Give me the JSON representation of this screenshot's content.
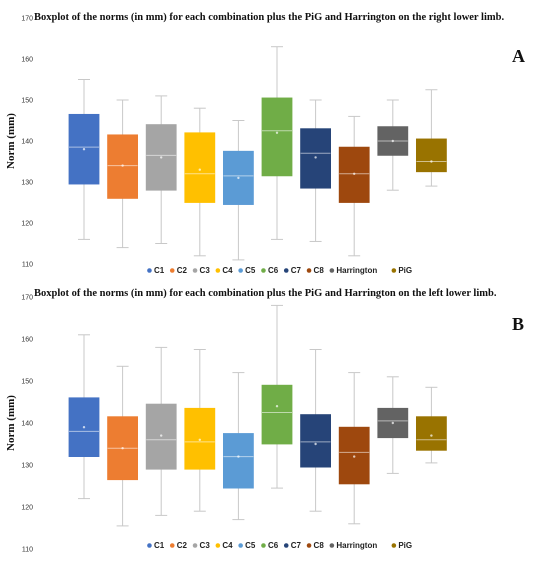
{
  "chart_data": [
    {
      "type": "boxplot",
      "panel": "A",
      "title": "Boxplot  of the norms (in mm)  for each combination  plus the PiG and Harrington  on the right lower limb.",
      "ylabel": "Norm (mm)",
      "ylim": [
        110,
        170
      ],
      "yticks": [
        110,
        120,
        130,
        140,
        150,
        160,
        170
      ],
      "grid": false,
      "legend_position": "bottom",
      "series": [
        {
          "name": "C1",
          "color": "#4472C4",
          "min": 116,
          "q1": 129.5,
          "median": 138.5,
          "q3": 146.5,
          "max": 155,
          "mean": 138
        },
        {
          "name": "C2",
          "color": "#ED7D31",
          "min": 114,
          "q1": 126,
          "median": 134,
          "q3": 141.5,
          "max": 150,
          "mean": 134
        },
        {
          "name": "C3",
          "color": "#A5A5A5",
          "min": 115,
          "q1": 128,
          "median": 136.5,
          "q3": 144,
          "max": 151,
          "mean": 136
        },
        {
          "name": "C4",
          "color": "#FFC000",
          "min": 112,
          "q1": 125,
          "median": 132,
          "q3": 142,
          "max": 148,
          "mean": 133
        },
        {
          "name": "C5",
          "color": "#5B9BD5",
          "min": 111,
          "q1": 124.5,
          "median": 131.5,
          "q3": 137.5,
          "max": 145,
          "mean": 131
        },
        {
          "name": "C6",
          "color": "#70AD47",
          "min": 116,
          "q1": 131.5,
          "median": 142.5,
          "q3": 150.5,
          "max": 163,
          "mean": 142
        },
        {
          "name": "C7",
          "color": "#264478",
          "min": 115.5,
          "q1": 128.5,
          "median": 137,
          "q3": 143,
          "max": 150,
          "mean": 136
        },
        {
          "name": "C8",
          "color": "#9E480E",
          "min": 112,
          "q1": 125,
          "median": 132,
          "q3": 138.5,
          "max": 146,
          "mean": 132
        },
        {
          "name": "Harrington",
          "color": "#636363",
          "min": 128,
          "q1": 136.5,
          "median": 140,
          "q3": 143.5,
          "max": 150,
          "mean": 140
        },
        {
          "name": "PiG",
          "color": "#997300",
          "min": 129,
          "q1": 132.5,
          "median": 135,
          "q3": 140.5,
          "max": 152.5,
          "mean": 135
        }
      ]
    },
    {
      "type": "boxplot",
      "panel": "B",
      "title": "Boxplot  of the norms (in mm)  for each combination  plus the PiG and Harrington  on the left lower limb.",
      "ylabel": "Norm (mm)",
      "ylim": [
        110,
        170
      ],
      "yticks": [
        110,
        120,
        130,
        140,
        150,
        160,
        170
      ],
      "grid": false,
      "legend_position": "bottom",
      "series": [
        {
          "name": "C1",
          "color": "#4472C4",
          "min": 122,
          "q1": 132,
          "median": 138,
          "q3": 146,
          "max": 161,
          "mean": 139
        },
        {
          "name": "C2",
          "color": "#ED7D31",
          "min": 115.5,
          "q1": 126.5,
          "median": 134,
          "q3": 141.5,
          "max": 153.5,
          "mean": 134
        },
        {
          "name": "C3",
          "color": "#A5A5A5",
          "min": 118,
          "q1": 129,
          "median": 136,
          "q3": 144.5,
          "max": 158,
          "mean": 137
        },
        {
          "name": "C4",
          "color": "#FFC000",
          "min": 119,
          "q1": 129,
          "median": 135.5,
          "q3": 143.5,
          "max": 157.5,
          "mean": 136
        },
        {
          "name": "C5",
          "color": "#5B9BD5",
          "min": 117,
          "q1": 124.5,
          "median": 132,
          "q3": 137.5,
          "max": 152,
          "mean": 132
        },
        {
          "name": "C6",
          "color": "#70AD47",
          "min": 124.5,
          "q1": 135,
          "median": 142.5,
          "q3": 149,
          "max": 168,
          "mean": 144
        },
        {
          "name": "C7",
          "color": "#264478",
          "min": 119,
          "q1": 129.5,
          "median": 135.5,
          "q3": 142,
          "max": 157.5,
          "mean": 135
        },
        {
          "name": "C8",
          "color": "#9E480E",
          "min": 116,
          "q1": 125.5,
          "median": 133,
          "q3": 139,
          "max": 152,
          "mean": 132
        },
        {
          "name": "Harrington",
          "color": "#636363",
          "min": 128,
          "q1": 136.5,
          "median": 140.5,
          "q3": 143.5,
          "max": 151,
          "mean": 140
        },
        {
          "name": "PiG",
          "color": "#997300",
          "min": 130.5,
          "q1": 133.5,
          "median": 136,
          "q3": 141.5,
          "max": 148.5,
          "mean": 137
        }
      ]
    }
  ]
}
